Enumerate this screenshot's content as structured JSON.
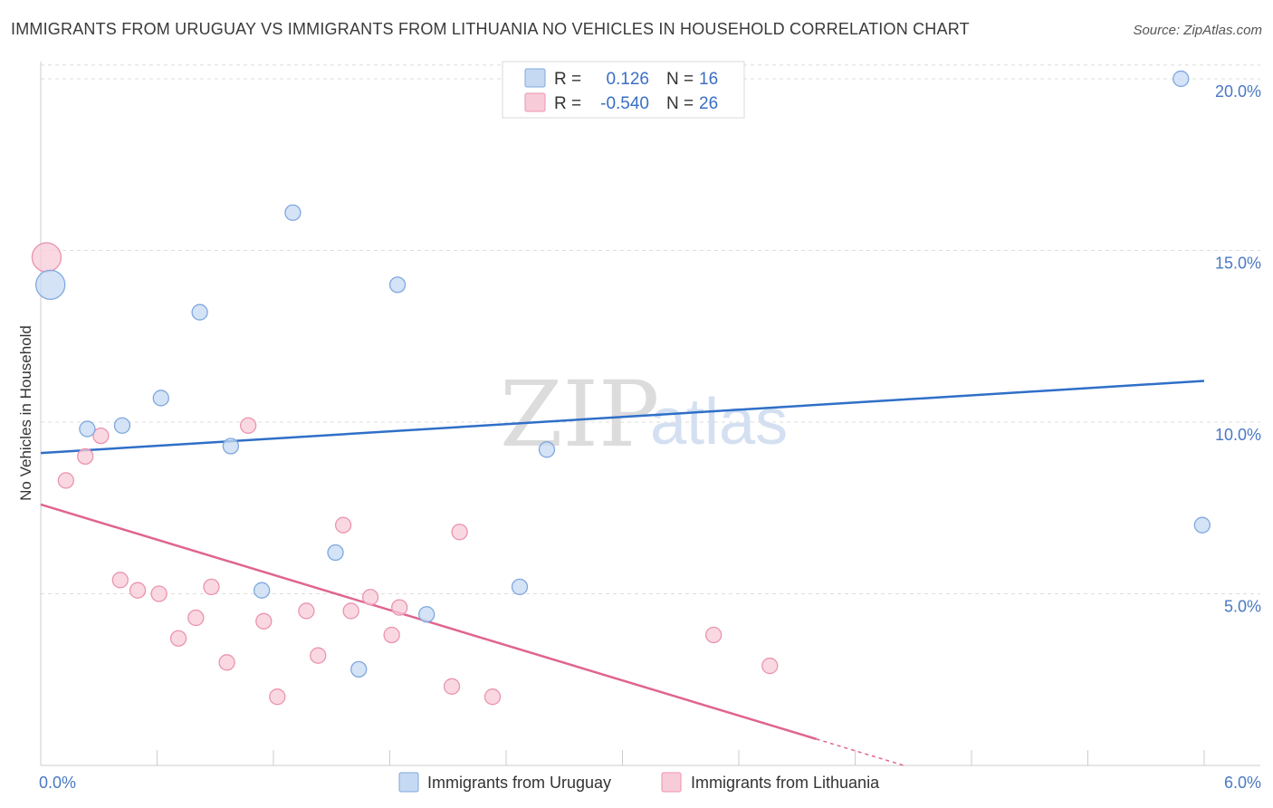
{
  "title": "IMMIGRANTS FROM URUGUAY VS IMMIGRANTS FROM LITHUANIA NO VEHICLES IN HOUSEHOLD CORRELATION CHART",
  "source": "Source: ZipAtlas.com",
  "watermark": {
    "zip": "ZIP",
    "atlas": "atlas"
  },
  "colors": {
    "uruguay_fill": "#c5d9f3",
    "uruguay_stroke": "#7fa8de",
    "uruguay_line": "#2f6fc8",
    "lithuania_fill": "#f8cbd8",
    "lithuania_stroke": "#ea94ae",
    "lithuania_line": "#e0658e",
    "grid": "#dddddd",
    "axis": "#cccccc"
  },
  "legend": {
    "rows": [
      {
        "r_label": "R =",
        "r_value": "0.126",
        "n_label": "N =",
        "n_value": "16"
      },
      {
        "r_label": "R =",
        "r_value": "-0.540",
        "n_label": "N =",
        "n_value": "26"
      }
    ]
  },
  "chart_data": {
    "type": "scatter",
    "title": "IMMIGRANTS FROM URUGUAY VS IMMIGRANTS FROM LITHUANIA NO VEHICLES IN HOUSEHOLD CORRELATION CHART",
    "xlabel": "",
    "ylabel": "No Vehicles in Household",
    "xlim": [
      0,
      6
    ],
    "ylim": [
      0,
      20.5
    ],
    "x_tick_labels": [
      "0.0%",
      "6.0%"
    ],
    "y_ticks": [
      5,
      10,
      15,
      20
    ],
    "y_tick_labels": [
      "5.0%",
      "10.0%",
      "15.0%",
      "20.0%"
    ],
    "grid": true,
    "legend_position": "top-center",
    "series": [
      {
        "name": "Immigrants from Uruguay",
        "points": [
          {
            "x": 0.05,
            "y": 14.0,
            "size": "large"
          },
          {
            "x": 0.24,
            "y": 9.8,
            "size": "normal"
          },
          {
            "x": 0.42,
            "y": 9.9,
            "size": "normal"
          },
          {
            "x": 0.62,
            "y": 10.7,
            "size": "normal"
          },
          {
            "x": 0.82,
            "y": 13.2,
            "size": "normal"
          },
          {
            "x": 0.98,
            "y": 9.3,
            "size": "normal"
          },
          {
            "x": 1.3,
            "y": 16.1,
            "size": "normal"
          },
          {
            "x": 1.14,
            "y": 5.1,
            "size": "normal"
          },
          {
            "x": 1.52,
            "y": 6.2,
            "size": "normal"
          },
          {
            "x": 1.64,
            "y": 2.8,
            "size": "normal"
          },
          {
            "x": 1.84,
            "y": 14.0,
            "size": "normal"
          },
          {
            "x": 1.99,
            "y": 4.4,
            "size": "normal"
          },
          {
            "x": 2.47,
            "y": 5.2,
            "size": "normal"
          },
          {
            "x": 2.61,
            "y": 9.2,
            "size": "normal"
          },
          {
            "x": 5.88,
            "y": 20.0,
            "size": "normal"
          },
          {
            "x": 5.99,
            "y": 7.0,
            "size": "normal"
          }
        ],
        "trend": {
          "x": [
            0,
            6
          ],
          "y": [
            9.1,
            11.2
          ]
        }
      },
      {
        "name": "Immigrants from Lithuania",
        "points": [
          {
            "x": 0.03,
            "y": 14.8,
            "size": "large"
          },
          {
            "x": 0.13,
            "y": 8.3,
            "size": "normal"
          },
          {
            "x": 0.23,
            "y": 9.0,
            "size": "normal"
          },
          {
            "x": 0.31,
            "y": 9.6,
            "size": "normal"
          },
          {
            "x": 0.41,
            "y": 5.4,
            "size": "normal"
          },
          {
            "x": 0.5,
            "y": 5.1,
            "size": "normal"
          },
          {
            "x": 0.61,
            "y": 5.0,
            "size": "normal"
          },
          {
            "x": 0.71,
            "y": 3.7,
            "size": "normal"
          },
          {
            "x": 0.8,
            "y": 4.3,
            "size": "normal"
          },
          {
            "x": 0.88,
            "y": 5.2,
            "size": "normal"
          },
          {
            "x": 0.96,
            "y": 3.0,
            "size": "normal"
          },
          {
            "x": 1.07,
            "y": 9.9,
            "size": "normal"
          },
          {
            "x": 1.15,
            "y": 4.2,
            "size": "normal"
          },
          {
            "x": 1.22,
            "y": 2.0,
            "size": "normal"
          },
          {
            "x": 1.37,
            "y": 4.5,
            "size": "normal"
          },
          {
            "x": 1.43,
            "y": 3.2,
            "size": "normal"
          },
          {
            "x": 1.56,
            "y": 7.0,
            "size": "normal"
          },
          {
            "x": 1.6,
            "y": 4.5,
            "size": "normal"
          },
          {
            "x": 1.7,
            "y": 4.9,
            "size": "normal"
          },
          {
            "x": 1.81,
            "y": 3.8,
            "size": "normal"
          },
          {
            "x": 1.85,
            "y": 4.6,
            "size": "normal"
          },
          {
            "x": 2.12,
            "y": 2.3,
            "size": "normal"
          },
          {
            "x": 2.16,
            "y": 6.8,
            "size": "normal"
          },
          {
            "x": 2.33,
            "y": 2.0,
            "size": "normal"
          },
          {
            "x": 3.47,
            "y": 3.8,
            "size": "normal"
          },
          {
            "x": 3.76,
            "y": 2.9,
            "size": "normal"
          }
        ],
        "trend": {
          "x": [
            0,
            4.45
          ],
          "y": [
            7.6,
            0
          ],
          "solid_until_x": 4.0
        }
      }
    ]
  }
}
